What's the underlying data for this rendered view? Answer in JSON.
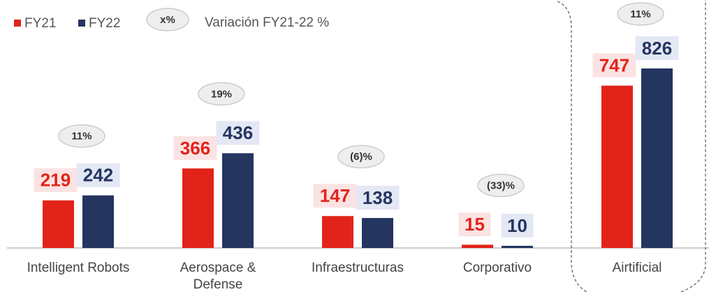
{
  "chart_data": {
    "type": "bar",
    "legend_note": {
      "symbol": "x%",
      "label": "Variación FY21-22 %"
    },
    "categories": [
      "Intelligent Robots",
      "Aerospace &\nDefense",
      "Infraestructuras",
      "Corporativo",
      "Airtificial"
    ],
    "series": [
      {
        "name": "FY21",
        "color": "#e2231a",
        "label_background": "#fbe3e3",
        "values": [
          219,
          366,
          147,
          15,
          747
        ]
      },
      {
        "name": "FY22",
        "color": "#243560",
        "label_background": "#e3e8f4",
        "values": [
          242,
          436,
          138,
          10,
          826
        ]
      }
    ],
    "annotations": [
      "11%",
      "19%",
      "(6)%",
      "(33)%",
      "11%"
    ]
  }
}
